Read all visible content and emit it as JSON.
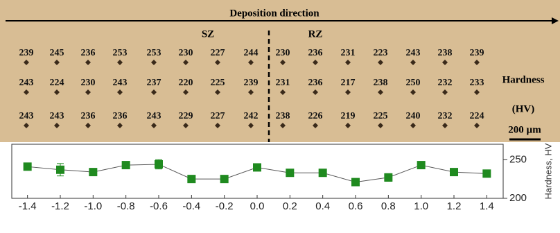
{
  "micrograph": {
    "direction_label": "Deposition direction",
    "zones": [
      "SZ",
      "RZ"
    ],
    "hardness_rows": [
      [
        239,
        245,
        236,
        253,
        253,
        230,
        227,
        244,
        230,
        236,
        231,
        223,
        243,
        238,
        239
      ],
      [
        243,
        224,
        230,
        243,
        237,
        220,
        225,
        239,
        231,
        236,
        217,
        238,
        250,
        232,
        233
      ],
      [
        243,
        243,
        236,
        236,
        243,
        229,
        227,
        242,
        238,
        226,
        219,
        225,
        240,
        232,
        224
      ]
    ],
    "legend": [
      "Hardness",
      "(HV)"
    ],
    "scale_bar": "200 µm"
  },
  "chart_data": {
    "type": "line",
    "y_label": "Hardness, HV",
    "y_axis_side": "right",
    "color": "#1f8a1f",
    "x": [
      -1.4,
      -1.2,
      -1.0,
      -0.8,
      -0.6,
      -0.4,
      -0.2,
      0.0,
      0.2,
      0.4,
      0.6,
      0.8,
      1.0,
      1.2,
      1.4
    ],
    "values": [
      241,
      237,
      234,
      243,
      244,
      225,
      225,
      240,
      233,
      233,
      221,
      227,
      243,
      234,
      232
    ],
    "errors": [
      3,
      8,
      3,
      3,
      6,
      3,
      3,
      3,
      3,
      3,
      3,
      5,
      3,
      3,
      3
    ],
    "xlim": [
      -1.5,
      1.5
    ],
    "ylim": [
      200,
      270
    ],
    "xticks": [
      -1.4,
      -1.2,
      {
        "value": -1.0,
        "label": "-1.0"
      },
      -0.8,
      -0.6,
      -0.4,
      -0.2,
      {
        "value": 0.0,
        "label": "0.0"
      },
      0.2,
      0.4,
      0.6,
      0.8,
      {
        "value": 1.0,
        "label": "1.0"
      },
      1.2,
      1.4
    ],
    "yticks": [
      200,
      250
    ]
  }
}
